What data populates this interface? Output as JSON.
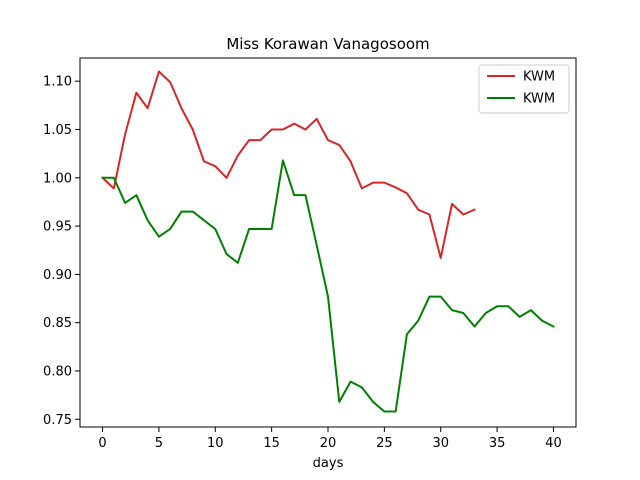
{
  "chart_data": {
    "type": "line",
    "title": "Miss Korawan Vanagosoom",
    "xlabel": "days",
    "ylabel": "",
    "xlim": [
      -2,
      42
    ],
    "ylim": [
      0.742,
      1.124
    ],
    "xticks": [
      0,
      5,
      10,
      15,
      20,
      25,
      30,
      35,
      40
    ],
    "yticks": [
      0.75,
      0.8,
      0.85,
      0.9,
      0.95,
      1.0,
      1.05,
      1.1
    ],
    "ytick_labels": [
      "0.75",
      "0.80",
      "0.85",
      "0.90",
      "0.95",
      "1.00",
      "1.05",
      "1.10"
    ],
    "xtick_labels": [
      "0",
      "5",
      "10",
      "15",
      "20",
      "25",
      "30",
      "35",
      "40"
    ],
    "grid": false,
    "legend_position": "top-right",
    "series": [
      {
        "name": "KWM",
        "color": "#d62728",
        "x": [
          0,
          1,
          2,
          3,
          4,
          5,
          6,
          7,
          8,
          9,
          10,
          11,
          12,
          13,
          14,
          15,
          16,
          17,
          18,
          19,
          20,
          21,
          22,
          23,
          24,
          25,
          26,
          27,
          28,
          29,
          30,
          31,
          32,
          33
        ],
        "y": [
          1.0,
          0.989,
          1.045,
          1.088,
          1.072,
          1.11,
          1.099,
          1.072,
          1.05,
          1.017,
          1.012,
          1.0,
          1.023,
          1.039,
          1.039,
          1.05,
          1.05,
          1.056,
          1.05,
          1.061,
          1.039,
          1.034,
          1.017,
          0.989,
          0.995,
          0.995,
          0.99,
          0.984,
          0.967,
          0.962,
          0.917,
          0.973,
          0.962,
          0.967
        ]
      },
      {
        "name": "KWM",
        "color": "#008000",
        "x": [
          0,
          1,
          2,
          3,
          4,
          5,
          6,
          7,
          8,
          9,
          10,
          11,
          12,
          13,
          14,
          15,
          16,
          17,
          18,
          19,
          20,
          21,
          22,
          23,
          24,
          25,
          26,
          27,
          28,
          29,
          30,
          31,
          32,
          33,
          34,
          35,
          36,
          37,
          38,
          39,
          40
        ],
        "y": [
          1.0,
          1.0,
          0.974,
          0.982,
          0.956,
          0.939,
          0.947,
          0.965,
          0.965,
          0.956,
          0.947,
          0.921,
          0.912,
          0.947,
          0.947,
          0.947,
          1.018,
          0.982,
          0.982,
          0.93,
          0.877,
          0.768,
          0.789,
          0.783,
          0.768,
          0.758,
          0.758,
          0.838,
          0.852,
          0.877,
          0.877,
          0.863,
          0.86,
          0.846,
          0.86,
          0.867,
          0.867,
          0.856,
          0.863,
          0.852,
          0.846
        ]
      }
    ]
  }
}
